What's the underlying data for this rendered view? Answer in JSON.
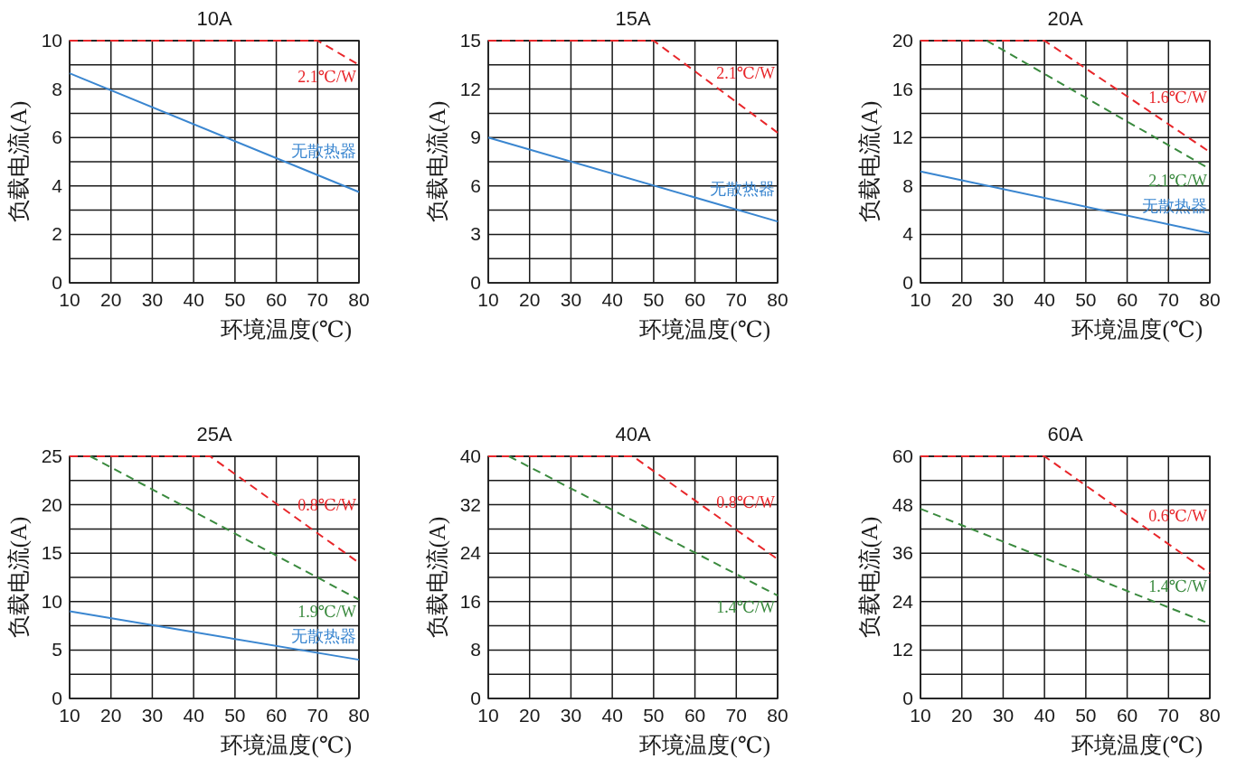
{
  "chart_data": [
    {
      "type": "line",
      "title": "10A",
      "xlabel": "环境温度(℃)",
      "ylabel": "负载电流(A)",
      "xlim": [
        10,
        80
      ],
      "xticks": [
        10,
        20,
        30,
        40,
        50,
        60,
        70,
        80
      ],
      "ylim": [
        0,
        10
      ],
      "yticks": [
        0,
        {
          "value": 1,
          "label": null
        },
        2,
        {
          "value": 3,
          "label": null
        },
        4,
        {
          "value": 5,
          "label": null
        },
        6,
        {
          "value": 7,
          "label": null
        },
        8,
        {
          "value": 9,
          "label": null
        },
        10
      ],
      "grid": true,
      "series": [
        {
          "name": "2.1℃/W",
          "color": "#e8262a",
          "line_style": "dashed",
          "x": [
            10,
            70,
            80
          ],
          "values": [
            10,
            10,
            9
          ]
        },
        {
          "name": "无散热器",
          "color": "#3a86d0",
          "line_style": "solid",
          "x": [
            10,
            80
          ],
          "values": [
            8.65,
            3.75
          ]
        }
      ]
    },
    {
      "type": "line",
      "title": "15A",
      "xlabel": "环境温度(℃)",
      "ylabel": "负载电流(A)",
      "xlim": [
        10,
        80
      ],
      "xticks": [
        10,
        20,
        30,
        40,
        50,
        60,
        70,
        80
      ],
      "ylim": [
        0,
        15
      ],
      "yticks": [
        0,
        {
          "value": 1.5,
          "label": null
        },
        3,
        {
          "value": 4.5,
          "label": null
        },
        6,
        {
          "value": 7.5,
          "label": null
        },
        9,
        {
          "value": 10.5,
          "label": null
        },
        12,
        {
          "value": 13.5,
          "label": null
        },
        15
      ],
      "grid": true,
      "series": [
        {
          "name": "2.1℃/W",
          "color": "#e8262a",
          "line_style": "dashed",
          "x": [
            10,
            50,
            80
          ],
          "values": [
            15,
            15,
            9.3
          ]
        },
        {
          "name": "无散热器",
          "color": "#3a86d0",
          "line_style": "solid",
          "x": [
            10,
            80
          ],
          "values": [
            9,
            3.8
          ]
        }
      ]
    },
    {
      "type": "line",
      "title": "20A",
      "xlabel": "环境温度(℃)",
      "ylabel": "负载电流(A)",
      "xlim": [
        10,
        80
      ],
      "xticks": [
        10,
        20,
        30,
        40,
        50,
        60,
        70,
        80
      ],
      "ylim": [
        0,
        20
      ],
      "yticks": [
        0,
        {
          "value": 2,
          "label": null
        },
        4,
        {
          "value": 6,
          "label": null
        },
        8,
        {
          "value": 10,
          "label": null
        },
        12,
        {
          "value": 14,
          "label": null
        },
        16,
        {
          "value": 18,
          "label": null
        },
        20
      ],
      "grid": true,
      "series": [
        {
          "name": "1.6℃/W",
          "color": "#e8262a",
          "line_style": "dashed",
          "x": [
            10,
            40,
            80
          ],
          "values": [
            20,
            20,
            10.8
          ]
        },
        {
          "name": "2.1℃/W",
          "color": "#3a8a3e",
          "line_style": "dashed",
          "x": [
            26,
            80
          ],
          "values": [
            20,
            9.4
          ]
        },
        {
          "name": "无散热器",
          "color": "#3a86d0",
          "line_style": "solid",
          "x": [
            10,
            80
          ],
          "values": [
            9.2,
            4.1
          ]
        }
      ]
    },
    {
      "type": "line",
      "title": "25A",
      "xlabel": "环境温度(℃)",
      "ylabel": "负载电流(A)",
      "xlim": [
        10,
        80
      ],
      "xticks": [
        10,
        20,
        30,
        40,
        50,
        60,
        70,
        80
      ],
      "ylim": [
        0,
        25
      ],
      "yticks": [
        0,
        {
          "value": 2.5,
          "label": null
        },
        5,
        {
          "value": 7.5,
          "label": null
        },
        10,
        {
          "value": 12.5,
          "label": null
        },
        15,
        {
          "value": 17.5,
          "label": null
        },
        20,
        {
          "value": 22.5,
          "label": null
        },
        25
      ],
      "grid": true,
      "series": [
        {
          "name": "0.8℃/W",
          "color": "#e8262a",
          "line_style": "dashed",
          "x": [
            10,
            44,
            80
          ],
          "values": [
            25,
            25,
            14
          ]
        },
        {
          "name": "1.9℃/W",
          "color": "#3a8a3e",
          "line_style": "dashed",
          "x": [
            15,
            80
          ],
          "values": [
            25,
            10.2
          ]
        },
        {
          "name": "无散热器",
          "color": "#3a86d0",
          "line_style": "solid",
          "x": [
            10,
            80
          ],
          "values": [
            9,
            4
          ]
        }
      ]
    },
    {
      "type": "line",
      "title": "40A",
      "xlabel": "环境温度(℃)",
      "ylabel": "负载电流(A)",
      "xlim": [
        10,
        80
      ],
      "xticks": [
        10,
        20,
        30,
        40,
        50,
        60,
        70,
        80
      ],
      "ylim": [
        0,
        40
      ],
      "yticks": [
        0,
        {
          "value": 4,
          "label": null
        },
        8,
        {
          "value": 12,
          "label": null
        },
        16,
        {
          "value": 20,
          "label": null
        },
        24,
        {
          "value": 28,
          "label": null
        },
        32,
        {
          "value": 36,
          "label": null
        },
        40
      ],
      "grid": true,
      "series": [
        {
          "name": "0.8℃/W",
          "color": "#e8262a",
          "line_style": "dashed",
          "x": [
            10,
            45,
            80
          ],
          "values": [
            40,
            40,
            23
          ]
        },
        {
          "name": "1.4℃/W",
          "color": "#3a8a3e",
          "line_style": "dashed",
          "x": [
            15,
            80
          ],
          "values": [
            40,
            17
          ]
        }
      ]
    },
    {
      "type": "line",
      "title": "60A",
      "xlabel": "环境温度(℃)",
      "ylabel": "负载电流(A)",
      "xlim": [
        10,
        80
      ],
      "xticks": [
        10,
        20,
        30,
        40,
        50,
        60,
        70,
        80
      ],
      "ylim": [
        0,
        60
      ],
      "yticks": [
        0,
        {
          "value": 6,
          "label": null
        },
        12,
        {
          "value": 18,
          "label": null
        },
        24,
        {
          "value": 30,
          "label": null
        },
        36,
        {
          "value": 42,
          "label": null
        },
        48,
        {
          "value": 54,
          "label": null
        },
        60
      ],
      "grid": true,
      "series": [
        {
          "name": "0.6℃/W",
          "color": "#e8262a",
          "line_style": "dashed",
          "x": [
            10,
            40,
            80
          ],
          "values": [
            60,
            60,
            31
          ]
        },
        {
          "name": "1.4℃/W",
          "color": "#3a8a3e",
          "line_style": "dashed",
          "x": [
            10,
            80
          ],
          "values": [
            47,
            18.5
          ]
        }
      ]
    }
  ]
}
